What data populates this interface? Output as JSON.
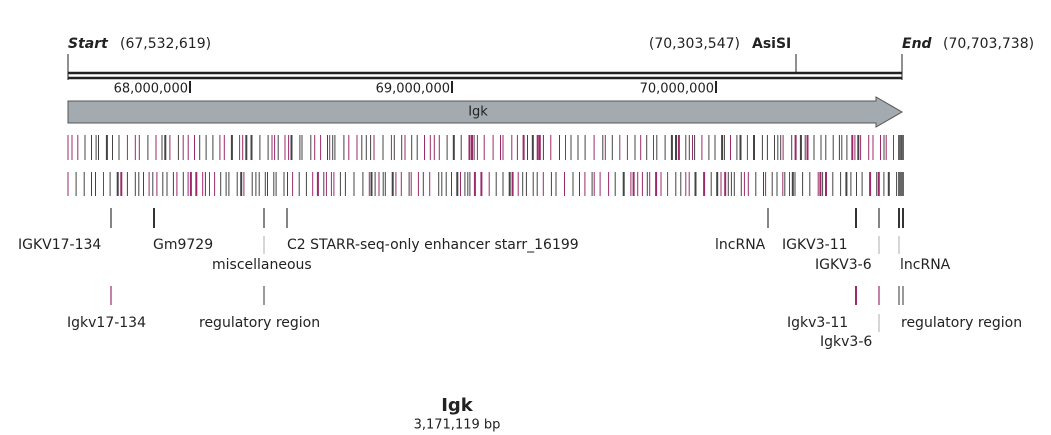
{
  "header": {
    "start_label": "Start",
    "start_pos": "(67,532,619)",
    "site_pos": "(70,303,547)",
    "site_label": "AsiSI",
    "end_label": "End",
    "end_pos": "(70,703,738)"
  },
  "ruler": {
    "ticks": [
      "68,000,000",
      "69,000,000",
      "70,000,000"
    ]
  },
  "gene": {
    "label": "Igk"
  },
  "features_top": [
    "IGKV17-134",
    "Gm9729",
    "miscellaneous",
    "C2 STARR-seq-only enhancer starr_16199",
    "lncRNA",
    "IGKV3-11",
    "IGKV3-6",
    "lncRNA"
  ],
  "features_bottom": [
    "Igkv17-134",
    "regulatory region",
    "Igkv3-11",
    "Igkv3-6",
    "regulatory region"
  ],
  "footer": {
    "name": "Igk",
    "length": "3,171,119 bp"
  }
}
